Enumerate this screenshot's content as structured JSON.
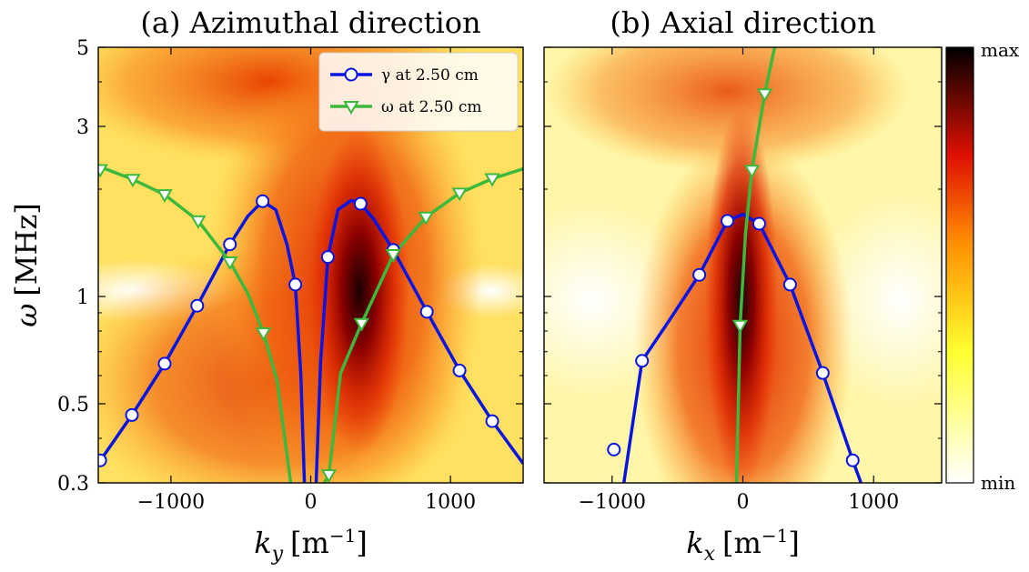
{
  "chart_data": [
    {
      "type": "line",
      "title": "(a) Azimuthal direction",
      "xlabel": {
        "symbol": "k",
        "subscript": "y",
        "unit": "[m",
        "exponent": "−1",
        "unit_end": "]"
      },
      "ylabel": {
        "symbol": "ω",
        "unit": "[MHz]"
      },
      "xlim": [
        -1520,
        1520
      ],
      "ylim": [
        0.3,
        5
      ],
      "log_y": true,
      "xticks": [
        {
          "value": -1000,
          "label": "−1000"
        },
        0,
        1000
      ],
      "yticks": [
        0.3,
        0.5,
        1,
        3,
        5
      ],
      "yminor": [
        0.4,
        0.6,
        0.7,
        0.8,
        0.9,
        2,
        4
      ],
      "show_ytick_labels": true,
      "legend": "upper right",
      "series": [
        {
          "name": "γ at 2.50 cm",
          "color": "#0a14e0",
          "marker": "circle",
          "x": [
            -1520,
            -1279,
            -1045,
            -812,
            -578,
            -450,
            -344,
            -250,
            -170,
            -110,
            -70,
            -45,
            null,
            39,
            70,
            123,
            195,
            290,
            357,
            450,
            591,
            831,
            1065,
            1299,
            1520
          ],
          "values": [
            0.34,
            0.465,
            0.648,
            0.942,
            1.4,
            1.68,
            1.85,
            1.75,
            1.4,
            1.08,
            0.6,
            0.3,
            null,
            0.3,
            0.65,
            1.29,
            1.75,
            1.86,
            1.82,
            1.65,
            1.35,
            0.906,
            0.62,
            0.447,
            0.34
          ],
          "marker_x": [
            -1506,
            -1279,
            -1045,
            -812,
            -578,
            -344,
            -110,
            123,
            357,
            591,
            831,
            1065,
            1299
          ],
          "marker_values": [
            0.347,
            0.465,
            0.648,
            0.942,
            1.4,
            1.85,
            1.08,
            1.29,
            1.82,
            1.35,
            0.906,
            0.62,
            0.447
          ]
        },
        {
          "name": "ω at 2.50 cm",
          "color": "#3cb83c",
          "marker": "triangle-down",
          "x": [
            -1520,
            -1273,
            -1045,
            -805,
            -578,
            -450,
            -338,
            -240,
            -143,
            null,
            97,
            130,
            214,
            364,
            591,
            825,
            1065,
            1299,
            1520
          ],
          "values": [
            2.32,
            2.13,
            1.93,
            1.63,
            1.25,
            1.02,
            0.79,
            0.58,
            0.3,
            null,
            0.3,
            0.316,
            0.61,
            0.84,
            1.31,
            1.67,
            1.95,
            2.14,
            2.28
          ],
          "marker_x": [
            -1506,
            -1273,
            -1045,
            -805,
            -578,
            -338,
            130,
            364,
            591,
            825,
            1065,
            1299
          ],
          "marker_values": [
            2.27,
            2.13,
            1.93,
            1.63,
            1.25,
            0.79,
            0.316,
            0.84,
            1.31,
            1.67,
            1.95,
            2.14
          ]
        }
      ]
    },
    {
      "type": "line",
      "title": "(b) Axial direction",
      "xlabel": {
        "symbol": "k",
        "subscript": "x",
        "unit": "[m",
        "exponent": "−1",
        "unit_end": "]"
      },
      "xlim": [
        -1520,
        1520
      ],
      "ylim": [
        0.3,
        5
      ],
      "log_y": true,
      "xticks": [
        {
          "value": -1000,
          "label": "−1000"
        },
        0,
        1000
      ],
      "yticks": [
        0.3,
        0.5,
        1,
        3,
        5
      ],
      "yminor": [
        0.4,
        0.6,
        0.7,
        0.8,
        0.9,
        2,
        4
      ],
      "show_ytick_labels": false,
      "colorbar": {
        "top_label": "max",
        "bottom_label": "min"
      },
      "series": [
        {
          "color": "#0a14e0",
          "marker": "circle",
          "x": [
            -910,
            -771,
            -550,
            -333,
            -118,
            0,
            125,
            361,
            611,
            840,
            903
          ],
          "values": [
            0.3,
            0.66,
            0.87,
            1.15,
            1.63,
            1.7,
            1.6,
            1.08,
            0.61,
            0.347,
            0.3
          ],
          "marker_x": [
            -986,
            -771,
            -333,
            -118,
            125,
            361,
            611,
            840
          ],
          "marker_values": [
            0.372,
            0.66,
            1.15,
            1.63,
            1.6,
            1.08,
            0.61,
            0.347
          ]
        },
        {
          "color": "#3cb83c",
          "marker": "triangle-down",
          "x": [
            -49,
            -21,
            20,
            69,
            167,
            243
          ],
          "values": [
            0.3,
            0.83,
            1.5,
            2.26,
            3.7,
            5
          ],
          "marker_x": [
            -21,
            69,
            167
          ],
          "marker_values": [
            0.83,
            2.26,
            3.7
          ]
        }
      ]
    }
  ]
}
